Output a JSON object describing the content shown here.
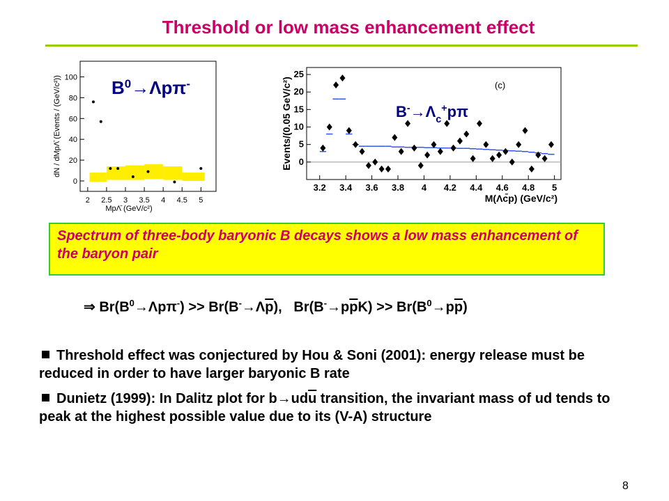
{
  "title": "Threshold or low mass enhancement effect",
  "figures": [
    {
      "type": "scatter",
      "label": [
        "B",
        "0",
        "→Λpπ",
        "-"
      ],
      "x_label": "MpΛ̄  (GeV/c²)",
      "y_label": "dN / dMpΛ̄  (Events / (GeV/c²))",
      "x": [
        2.15,
        2.35,
        2.6,
        2.8,
        3.2,
        3.6,
        4.3,
        5.0
      ],
      "values": [
        76,
        57,
        12,
        12,
        4,
        9,
        -1,
        12
      ],
      "band_bins": [
        2.05,
        2.5,
        3,
        3.5,
        4,
        4.5,
        5.1
      ],
      "band_low": [
        -1,
        1,
        1,
        2,
        1,
        0
      ],
      "band_high": [
        8,
        14,
        15,
        16,
        14,
        8
      ],
      "band_color": "#ffee00",
      "color": "#000000",
      "xlim": [
        1.8,
        5.4
      ],
      "ylim": [
        -10,
        115
      ],
      "xticks": [
        2,
        2.5,
        3,
        3.5,
        4,
        4.5,
        5
      ],
      "yticks": [
        0,
        20,
        40,
        60,
        80,
        100
      ]
    },
    {
      "type": "scatter",
      "label": [
        "B",
        "-",
        "→Λ",
        "c",
        "+",
        "pπ"
      ],
      "tag": "(c)",
      "x_label": "M(Λc̄p) (GeV/c²)",
      "y_label": "Events/(0.05 GeV/c²)",
      "x": [
        3.225,
        3.275,
        3.325,
        3.375,
        3.425,
        3.475,
        3.525,
        3.575,
        3.625,
        3.675,
        3.725,
        3.775,
        3.825,
        3.875,
        3.925,
        3.975,
        4.025,
        4.075,
        4.125,
        4.175,
        4.225,
        4.275,
        4.325,
        4.375,
        4.425,
        4.475,
        4.525,
        4.575,
        4.625,
        4.675,
        4.725,
        4.775,
        4.825,
        4.875,
        4.925,
        4.975
      ],
      "values": [
        4,
        10,
        22,
        24,
        9,
        5,
        3,
        -1,
        0,
        -2,
        -2,
        7,
        3,
        11,
        4,
        -1,
        2,
        5,
        3,
        11,
        4,
        6,
        8,
        1,
        11,
        5,
        1,
        2,
        3,
        0,
        5,
        9,
        -2,
        2,
        1,
        5
      ],
      "fit_bins": [
        3.2,
        3.25,
        3.3,
        3.35,
        3.4,
        3.45,
        3.5,
        3.55,
        3.6,
        3.65,
        3.7,
        3.75,
        3.8,
        3.85,
        3.9,
        3.95,
        4,
        4.05,
        4.1,
        4.15,
        4.2,
        4.25,
        4.3,
        4.35,
        4.4,
        4.45,
        4.5,
        4.55,
        4.6,
        4.65,
        4.7,
        4.75,
        4.8,
        4.85,
        4.9,
        4.95,
        5
      ],
      "fit_values": [
        3,
        8,
        18,
        18,
        8,
        5,
        4.5,
        4.5,
        4.5,
        4.5,
        4.5,
        4.3,
        4.3,
        4.2,
        4.2,
        4.2,
        4.1,
        4.1,
        4,
        4,
        4,
        3.9,
        3.9,
        3.8,
        3.7,
        3.6,
        3.5,
        3.4,
        3.3,
        3.2,
        3.1,
        3,
        2.8,
        2.6,
        2.4,
        2.2
      ],
      "fit_color": "#3355ee",
      "color": "#000000",
      "xlim": [
        3.1,
        5.05
      ],
      "ylim": [
        -5,
        27
      ],
      "xticks": [
        3.2,
        3.4,
        3.6,
        3.8,
        4,
        4.2,
        4.4,
        4.6,
        4.8,
        5
      ],
      "yticks": [
        0,
        5,
        10,
        15,
        20,
        25
      ]
    }
  ],
  "highlight": "Spectrum of three-body baryonic B decays shows a low mass enhancement of the baryon pair",
  "formula": [
    "⇒ Br(B",
    "0",
    "→Λpπ",
    "-",
    ") >> Br(B",
    "-",
    "→Λ",
    "p",
    "),   Br(B",
    "-",
    "→p",
    "p",
    "K) >> Br(B",
    "0",
    "→p",
    "p",
    ")"
  ],
  "bullets": [
    [
      "Threshold effect was conjectured by Hou & Soni (2001): energy release must be reduced in order to have larger baryonic B rate"
    ],
    [
      "Dunietz (1999): In Dalitz plot for b→ud",
      "u",
      " transition, the invariant mass of ud tends to peak at the highest possible value due to its (V-A) structure"
    ]
  ],
  "page_number": "8"
}
